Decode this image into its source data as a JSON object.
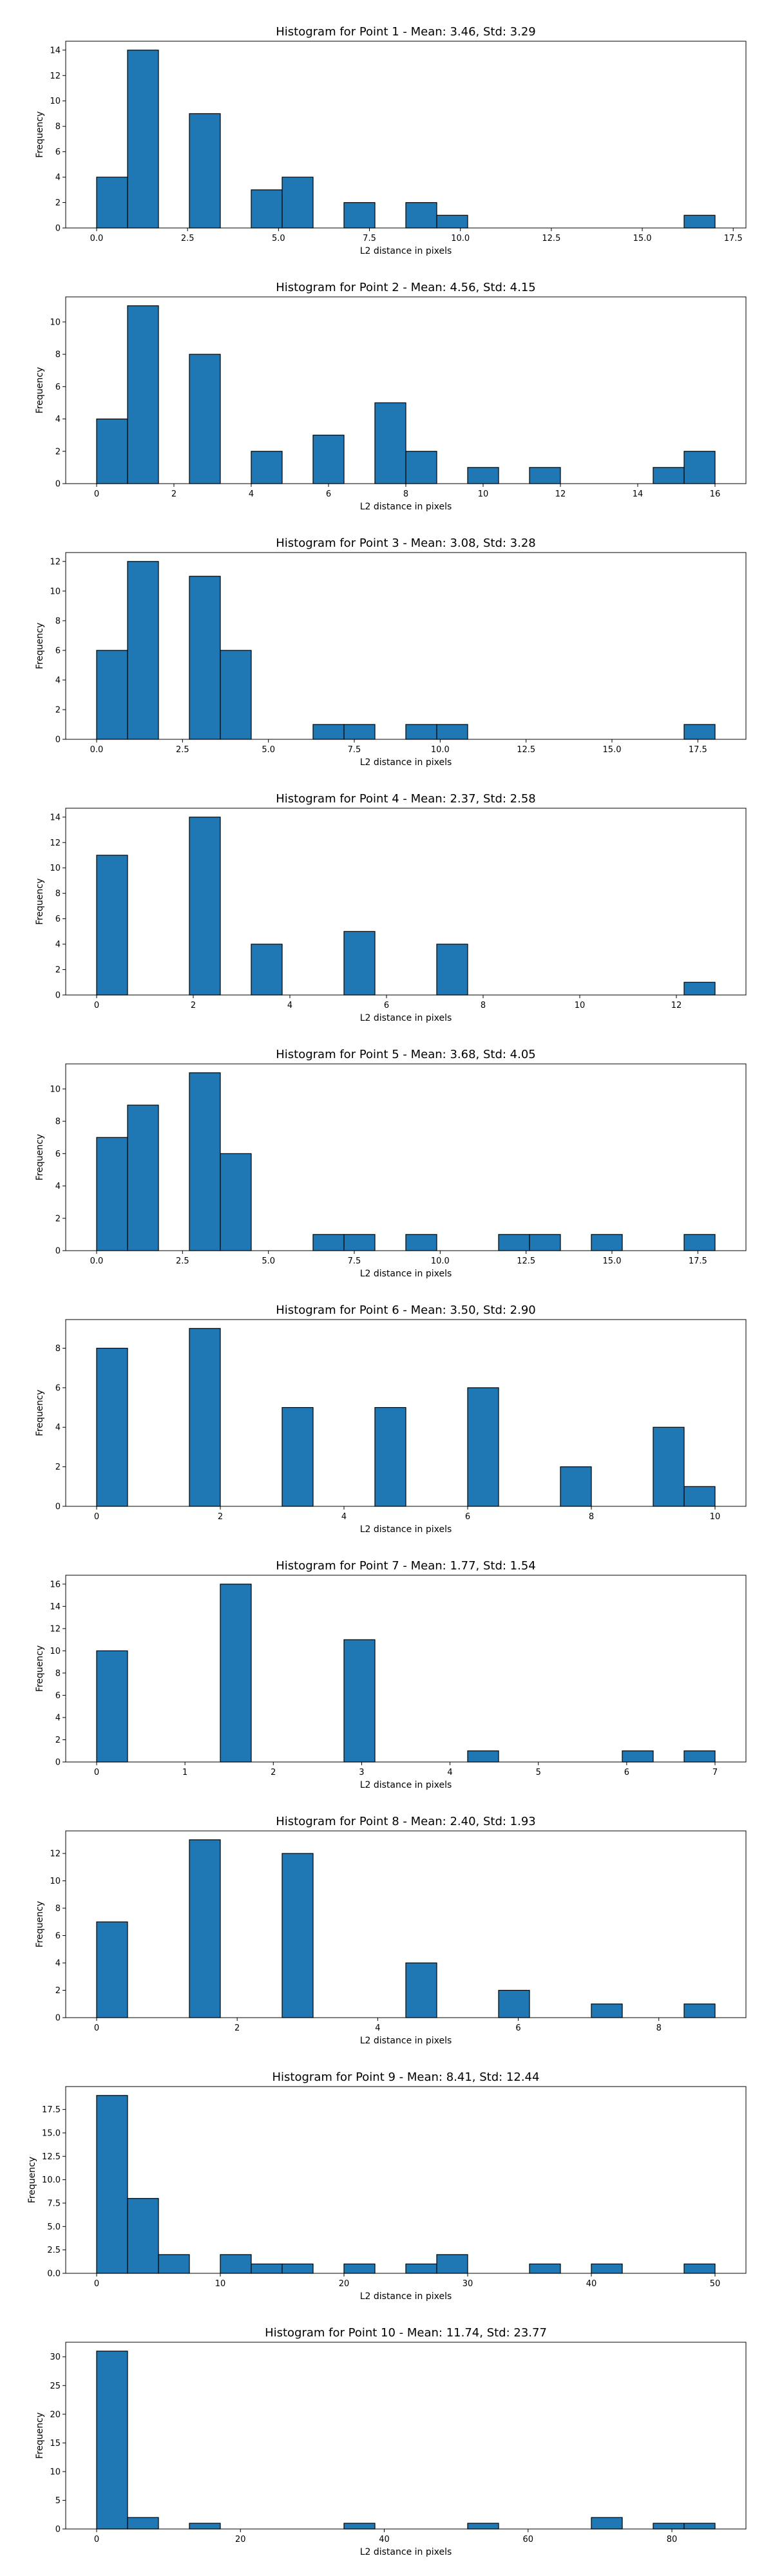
{
  "chart_data": [
    {
      "type": "bar",
      "title": "Histogram for Point 1 - Mean: 3.46, Std: 3.29",
      "xlabel": "L2 distance in pixels",
      "ylabel": "Frequency",
      "xlim": [
        -0.85,
        17.85
      ],
      "ylim": [
        0,
        14.7
      ],
      "xticks": [
        0.0,
        2.5,
        5.0,
        7.5,
        10.0,
        12.5,
        15.0,
        17.5
      ],
      "xtick_labels": [
        "0.0",
        "2.5",
        "5.0",
        "7.5",
        "10.0",
        "12.5",
        "15.0",
        "17.5"
      ],
      "yticks": [
        0,
        2,
        4,
        6,
        8,
        10,
        12,
        14
      ],
      "bins_start": 0.0,
      "bin_width": 0.85,
      "values": [
        4,
        14,
        0,
        9,
        0,
        3,
        4,
        0,
        2,
        0,
        2,
        1,
        0,
        0,
        0,
        0,
        0,
        0,
        0,
        1
      ]
    },
    {
      "type": "bar",
      "title": "Histogram for Point 2 - Mean: 4.56, Std: 4.15",
      "xlabel": "L2 distance in pixels",
      "ylabel": "Frequency",
      "xlim": [
        -0.8,
        16.8
      ],
      "ylim": [
        0,
        11.55
      ],
      "xticks": [
        0,
        2,
        4,
        6,
        8,
        10,
        12,
        14,
        16
      ],
      "xtick_labels": [
        "0",
        "2",
        "4",
        "6",
        "8",
        "10",
        "12",
        "14",
        "16"
      ],
      "yticks": [
        0,
        2,
        4,
        6,
        8,
        10
      ],
      "bins_start": 0.0,
      "bin_width": 0.8,
      "values": [
        4,
        11,
        0,
        8,
        0,
        2,
        0,
        3,
        0,
        5,
        2,
        0,
        1,
        0,
        1,
        0,
        0,
        0,
        1,
        2
      ]
    },
    {
      "type": "bar",
      "title": "Histogram for Point 3 - Mean: 3.08, Std: 3.28",
      "xlabel": "L2 distance in pixels",
      "ylabel": "Frequency",
      "xlim": [
        -0.9,
        18.9
      ],
      "ylim": [
        0,
        12.6
      ],
      "xticks": [
        0.0,
        2.5,
        5.0,
        7.5,
        10.0,
        12.5,
        15.0,
        17.5
      ],
      "xtick_labels": [
        "0.0",
        "2.5",
        "5.0",
        "7.5",
        "10.0",
        "12.5",
        "15.0",
        "17.5"
      ],
      "yticks": [
        0,
        2,
        4,
        6,
        8,
        10,
        12
      ],
      "bins_start": 0.0,
      "bin_width": 0.9,
      "values": [
        6,
        12,
        0,
        11,
        6,
        0,
        0,
        1,
        1,
        0,
        1,
        1,
        0,
        0,
        0,
        0,
        0,
        0,
        0,
        1
      ]
    },
    {
      "type": "bar",
      "title": "Histogram for Point 4 - Mean: 2.37, Std: 2.58",
      "xlabel": "L2 distance in pixels",
      "ylabel": "Frequency",
      "xlim": [
        -0.64,
        13.44
      ],
      "ylim": [
        0,
        14.7
      ],
      "xticks": [
        0,
        2,
        4,
        6,
        8,
        10,
        12
      ],
      "xtick_labels": [
        "0",
        "2",
        "4",
        "6",
        "8",
        "10",
        "12"
      ],
      "yticks": [
        0,
        2,
        4,
        6,
        8,
        10,
        12,
        14
      ],
      "bins_start": 0.0,
      "bin_width": 0.64,
      "values": [
        11,
        0,
        0,
        14,
        0,
        4,
        0,
        0,
        5,
        0,
        0,
        4,
        0,
        0,
        0,
        0,
        0,
        0,
        0,
        1
      ]
    },
    {
      "type": "bar",
      "title": "Histogram for Point 5 - Mean: 3.68, Std: 4.05",
      "xlabel": "L2 distance in pixels",
      "ylabel": "Frequency",
      "xlim": [
        -0.9,
        18.9
      ],
      "ylim": [
        0,
        11.55
      ],
      "xticks": [
        0.0,
        2.5,
        5.0,
        7.5,
        10.0,
        12.5,
        15.0,
        17.5
      ],
      "xtick_labels": [
        "0.0",
        "2.5",
        "5.0",
        "7.5",
        "10.0",
        "12.5",
        "15.0",
        "17.5"
      ],
      "yticks": [
        0,
        2,
        4,
        6,
        8,
        10
      ],
      "bins_start": 0.0,
      "bin_width": 0.9,
      "values": [
        7,
        9,
        0,
        11,
        6,
        0,
        0,
        1,
        1,
        0,
        1,
        0,
        0,
        1,
        1,
        0,
        1,
        0,
        0,
        1
      ]
    },
    {
      "type": "bar",
      "title": "Histogram for Point 6 - Mean: 3.50, Std: 2.90",
      "xlabel": "L2 distance in pixels",
      "ylabel": "Frequency",
      "xlim": [
        -0.5,
        10.5
      ],
      "ylim": [
        0,
        9.45
      ],
      "xticks": [
        0,
        2,
        4,
        6,
        8,
        10
      ],
      "xtick_labels": [
        "0",
        "2",
        "4",
        "6",
        "8",
        "10"
      ],
      "yticks": [
        0,
        2,
        4,
        6,
        8
      ],
      "bins_start": 0.0,
      "bin_width": 0.5,
      "values": [
        8,
        0,
        0,
        9,
        0,
        0,
        5,
        0,
        0,
        5,
        0,
        0,
        6,
        0,
        0,
        2,
        0,
        0,
        4,
        1
      ]
    },
    {
      "type": "bar",
      "title": "Histogram for Point 7 - Mean: 1.77, Std: 1.54",
      "xlabel": "L2 distance in pixels",
      "ylabel": "Frequency",
      "xlim": [
        -0.35,
        7.35
      ],
      "ylim": [
        0,
        16.8
      ],
      "xticks": [
        0,
        1,
        2,
        3,
        4,
        5,
        6,
        7
      ],
      "xtick_labels": [
        "0",
        "1",
        "2",
        "3",
        "4",
        "5",
        "6",
        "7"
      ],
      "yticks": [
        0,
        2,
        4,
        6,
        8,
        10,
        12,
        14,
        16
      ],
      "bins_start": 0.0,
      "bin_width": 0.35,
      "values": [
        10,
        0,
        0,
        0,
        16,
        0,
        0,
        0,
        11,
        0,
        0,
        0,
        1,
        0,
        0,
        0,
        0,
        1,
        0,
        1
      ]
    },
    {
      "type": "bar",
      "title": "Histogram for Point 8 - Mean: 2.40, Std: 1.93",
      "xlabel": "L2 distance in pixels",
      "ylabel": "Frequency",
      "xlim": [
        -0.44,
        9.24
      ],
      "ylim": [
        0,
        13.65
      ],
      "xticks": [
        0,
        2,
        4,
        6,
        8
      ],
      "xtick_labels": [
        "0",
        "2",
        "4",
        "6",
        "8"
      ],
      "yticks": [
        0,
        2,
        4,
        6,
        8,
        10,
        12
      ],
      "bins_start": 0.0,
      "bin_width": 0.44,
      "values": [
        7,
        0,
        0,
        13,
        0,
        0,
        12,
        0,
        0,
        0,
        4,
        0,
        0,
        2,
        0,
        0,
        1,
        0,
        0,
        1
      ]
    },
    {
      "type": "bar",
      "title": "Histogram for Point 9 - Mean: 8.41, Std: 12.44",
      "xlabel": "L2 distance in pixels",
      "ylabel": "Frequency",
      "xlim": [
        -2.5,
        52.5
      ],
      "ylim": [
        0,
        19.95
      ],
      "xticks": [
        0,
        10,
        20,
        30,
        40,
        50
      ],
      "xtick_labels": [
        "0",
        "10",
        "20",
        "30",
        "40",
        "50"
      ],
      "yticks": [
        0.0,
        2.5,
        5.0,
        7.5,
        10.0,
        12.5,
        15.0,
        17.5
      ],
      "ytick_labels": [
        "0.0",
        "2.5",
        "5.0",
        "7.5",
        "10.0",
        "12.5",
        "15.0",
        "17.5"
      ],
      "bins_start": 0.0,
      "bin_width": 2.5,
      "values": [
        19,
        8,
        2,
        0,
        2,
        1,
        1,
        0,
        1,
        0,
        1,
        2,
        0,
        0,
        1,
        0,
        1,
        0,
        0,
        1
      ]
    },
    {
      "type": "bar",
      "title": "Histogram for Point 10 - Mean: 11.74, Std: 23.77",
      "xlabel": "L2 distance in pixels",
      "ylabel": "Frequency",
      "xlim": [
        -4.3,
        90.3
      ],
      "ylim": [
        0,
        32.55
      ],
      "xticks": [
        0,
        20,
        40,
        60,
        80
      ],
      "xtick_labels": [
        "0",
        "20",
        "40",
        "60",
        "80"
      ],
      "yticks": [
        0,
        5,
        10,
        15,
        20,
        25,
        30
      ],
      "bins_start": 0.0,
      "bin_width": 4.3,
      "values": [
        31,
        2,
        0,
        1,
        0,
        0,
        0,
        0,
        1,
        0,
        0,
        0,
        1,
        0,
        0,
        0,
        2,
        0,
        1,
        1
      ]
    }
  ]
}
